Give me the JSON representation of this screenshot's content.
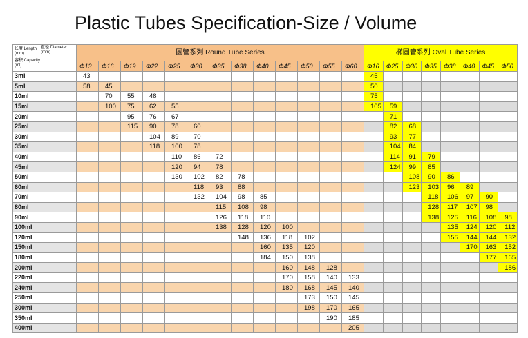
{
  "title": "Plastic Tubes Specification-Size / Volume",
  "header": {
    "length": "长度 Length (mm)",
    "diameter": "直径 Diameter (mm)",
    "capacity": "容积 Capacity (ml)",
    "round_series": "圆管系列 Round Tube Series",
    "oval_series": "椭圆管系列 Oval Tube Series",
    "round_diameters": [
      "Φ13",
      "Φ16",
      "Φ19",
      "Φ22",
      "Φ25",
      "Φ30",
      "Φ35",
      "Φ38",
      "Φ40",
      "Φ45",
      "Φ50",
      "Φ55",
      "Φ60"
    ],
    "oval_diameters": [
      "Φ16",
      "Φ25",
      "Φ30",
      "Φ35",
      "Φ38",
      "Φ40",
      "Φ45",
      "Φ50"
    ]
  },
  "rows": [
    {
      "label": "3ml",
      "round": [
        43,
        null,
        null,
        null,
        null,
        null,
        null,
        null,
        null,
        null,
        null,
        null,
        null
      ],
      "oval": [
        45,
        null,
        null,
        null,
        null,
        null,
        null,
        null
      ]
    },
    {
      "label": "5ml",
      "round": [
        58,
        45,
        null,
        null,
        null,
        null,
        null,
        null,
        null,
        null,
        null,
        null,
        null
      ],
      "oval": [
        50,
        null,
        null,
        null,
        null,
        null,
        null,
        null
      ]
    },
    {
      "label": "10ml",
      "round": [
        null,
        70,
        55,
        48,
        null,
        null,
        null,
        null,
        null,
        null,
        null,
        null,
        null
      ],
      "oval": [
        75,
        null,
        null,
        null,
        null,
        null,
        null,
        null
      ]
    },
    {
      "label": "15ml",
      "round": [
        null,
        100,
        75,
        62,
        55,
        null,
        null,
        null,
        null,
        null,
        null,
        null,
        null
      ],
      "oval": [
        105,
        59,
        null,
        null,
        null,
        null,
        null,
        null
      ]
    },
    {
      "label": "20ml",
      "round": [
        null,
        null,
        95,
        76,
        67,
        null,
        null,
        null,
        null,
        null,
        null,
        null,
        null
      ],
      "oval": [
        null,
        71,
        null,
        null,
        null,
        null,
        null,
        null
      ]
    },
    {
      "label": "25ml",
      "round": [
        null,
        null,
        115,
        90,
        78,
        60,
        null,
        null,
        null,
        null,
        null,
        null,
        null
      ],
      "oval": [
        null,
        82,
        68,
        null,
        null,
        null,
        null,
        null
      ]
    },
    {
      "label": "30ml",
      "round": [
        null,
        null,
        null,
        104,
        89,
        70,
        null,
        null,
        null,
        null,
        null,
        null,
        null
      ],
      "oval": [
        null,
        93,
        77,
        null,
        null,
        null,
        null,
        null
      ]
    },
    {
      "label": "35ml",
      "round": [
        null,
        null,
        null,
        118,
        100,
        78,
        null,
        null,
        null,
        null,
        null,
        null,
        null
      ],
      "oval": [
        null,
        104,
        84,
        null,
        null,
        null,
        null,
        null
      ]
    },
    {
      "label": "40ml",
      "round": [
        null,
        null,
        null,
        null,
        110,
        86,
        72,
        null,
        null,
        null,
        null,
        null,
        null
      ],
      "oval": [
        null,
        114,
        91,
        79,
        null,
        null,
        null,
        null
      ]
    },
    {
      "label": "45ml",
      "round": [
        null,
        null,
        null,
        null,
        120,
        94,
        78,
        null,
        null,
        null,
        null,
        null,
        null
      ],
      "oval": [
        null,
        124,
        99,
        85,
        null,
        null,
        null,
        null
      ]
    },
    {
      "label": "50ml",
      "round": [
        null,
        null,
        null,
        null,
        130,
        102,
        82,
        78,
        null,
        null,
        null,
        null,
        null
      ],
      "oval": [
        null,
        null,
        108,
        90,
        86,
        null,
        null,
        null
      ]
    },
    {
      "label": "60ml",
      "round": [
        null,
        null,
        null,
        null,
        null,
        118,
        93,
        88,
        null,
        null,
        null,
        null,
        null
      ],
      "oval": [
        null,
        null,
        123,
        103,
        96,
        89,
        null,
        null
      ]
    },
    {
      "label": "70ml",
      "round": [
        null,
        null,
        null,
        null,
        null,
        132,
        104,
        98,
        85,
        null,
        null,
        null,
        null
      ],
      "oval": [
        null,
        null,
        null,
        118,
        106,
        97,
        90,
        null
      ]
    },
    {
      "label": "80ml",
      "round": [
        null,
        null,
        null,
        null,
        null,
        null,
        115,
        108,
        98,
        null,
        null,
        null,
        null
      ],
      "oval": [
        null,
        null,
        null,
        128,
        117,
        107,
        98,
        null
      ]
    },
    {
      "label": "90ml",
      "round": [
        null,
        null,
        null,
        null,
        null,
        null,
        126,
        118,
        110,
        null,
        null,
        null,
        null
      ],
      "oval": [
        null,
        null,
        null,
        138,
        125,
        116,
        108,
        98
      ]
    },
    {
      "label": "100ml",
      "round": [
        null,
        null,
        null,
        null,
        null,
        null,
        138,
        128,
        120,
        100,
        null,
        null,
        null
      ],
      "oval": [
        null,
        null,
        null,
        null,
        135,
        124,
        120,
        112
      ]
    },
    {
      "label": "120ml",
      "round": [
        null,
        null,
        null,
        null,
        null,
        null,
        null,
        148,
        136,
        118,
        102,
        null,
        null
      ],
      "oval": [
        null,
        null,
        null,
        null,
        155,
        144,
        144,
        132
      ]
    },
    {
      "label": "150ml",
      "round": [
        null,
        null,
        null,
        null,
        null,
        null,
        null,
        null,
        160,
        135,
        120,
        null,
        null
      ],
      "oval": [
        null,
        null,
        null,
        null,
        null,
        170,
        163,
        152
      ]
    },
    {
      "label": "180ml",
      "round": [
        null,
        null,
        null,
        null,
        null,
        null,
        null,
        null,
        184,
        150,
        138,
        null,
        null
      ],
      "oval": [
        null,
        null,
        null,
        null,
        null,
        null,
        177,
        165
      ]
    },
    {
      "label": "200ml",
      "round": [
        null,
        null,
        null,
        null,
        null,
        null,
        null,
        null,
        null,
        160,
        148,
        128,
        null
      ],
      "oval": [
        null,
        null,
        null,
        null,
        null,
        null,
        null,
        186
      ]
    },
    {
      "label": "220ml",
      "round": [
        null,
        null,
        null,
        null,
        null,
        null,
        null,
        null,
        null,
        170,
        158,
        140,
        133
      ],
      "oval": [
        null,
        null,
        null,
        null,
        null,
        null,
        null,
        null
      ]
    },
    {
      "label": "240ml",
      "round": [
        null,
        null,
        null,
        null,
        null,
        null,
        null,
        null,
        null,
        180,
        168,
        145,
        140
      ],
      "oval": [
        null,
        null,
        null,
        null,
        null,
        null,
        null,
        null
      ]
    },
    {
      "label": "250ml",
      "round": [
        null,
        null,
        null,
        null,
        null,
        null,
        null,
        null,
        null,
        null,
        173,
        150,
        145
      ],
      "oval": [
        null,
        null,
        null,
        null,
        null,
        null,
        null,
        null
      ]
    },
    {
      "label": "300ml",
      "round": [
        null,
        null,
        null,
        null,
        null,
        null,
        null,
        null,
        null,
        null,
        198,
        170,
        165
      ],
      "oval": [
        null,
        null,
        null,
        null,
        null,
        null,
        null,
        null
      ]
    },
    {
      "label": "350ml",
      "round": [
        null,
        null,
        null,
        null,
        null,
        null,
        null,
        null,
        null,
        null,
        null,
        190,
        185
      ],
      "oval": [
        null,
        null,
        null,
        null,
        null,
        null,
        null,
        null
      ]
    },
    {
      "label": "400ml",
      "round": [
        null,
        null,
        null,
        null,
        null,
        null,
        null,
        null,
        null,
        null,
        null,
        null,
        205
      ],
      "oval": [
        null,
        null,
        null,
        null,
        null,
        null,
        null,
        null
      ]
    }
  ]
}
